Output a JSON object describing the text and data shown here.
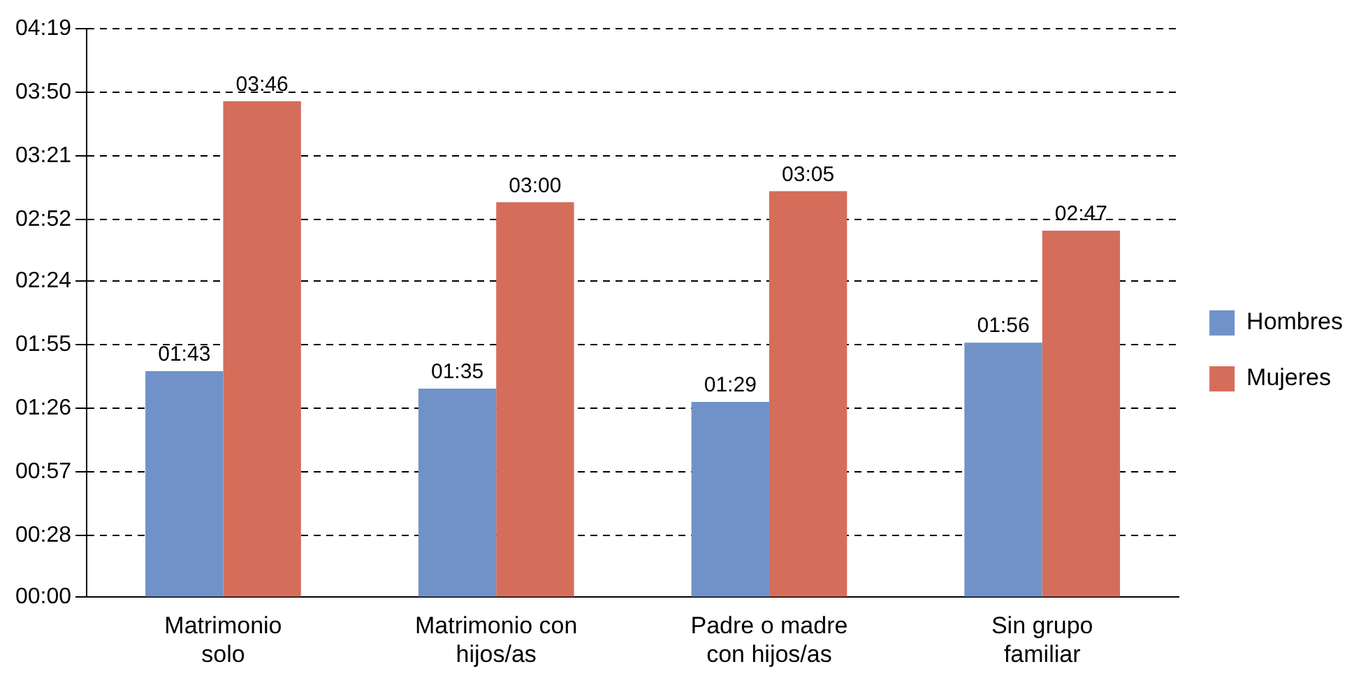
{
  "chart_data": {
    "type": "bar",
    "categories": [
      "Matrimonio solo",
      "Matrimonio con hijos/as",
      "Padre o madre con hijos/as",
      "Sin grupo familiar"
    ],
    "series": [
      {
        "name": "Hombres",
        "color": "#7092c8",
        "values": [
          103,
          95,
          89,
          116
        ],
        "value_labels": [
          "01:43",
          "01:35",
          "01:29",
          "01:56"
        ]
      },
      {
        "name": "Mujeres",
        "color": "#d56d5b",
        "values": [
          226,
          180,
          185,
          167
        ],
        "value_labels": [
          "03:46",
          "03:00",
          "03:05",
          "02:47"
        ]
      }
    ],
    "ylim": [
      0,
      259
    ],
    "yticks": [
      {
        "value": 0,
        "label": "00:00"
      },
      {
        "value": 28,
        "label": "00:28"
      },
      {
        "value": 57,
        "label": "00:57"
      },
      {
        "value": 86,
        "label": "01:26"
      },
      {
        "value": 115,
        "label": "01:55"
      },
      {
        "value": 144,
        "label": "02:24"
      },
      {
        "value": 172,
        "label": "02:52"
      },
      {
        "value": 201,
        "label": "03:21"
      },
      {
        "value": 230,
        "label": "03:50"
      },
      {
        "value": 259,
        "label": "04:19"
      }
    ],
    "grid": "y",
    "legend": "right"
  }
}
